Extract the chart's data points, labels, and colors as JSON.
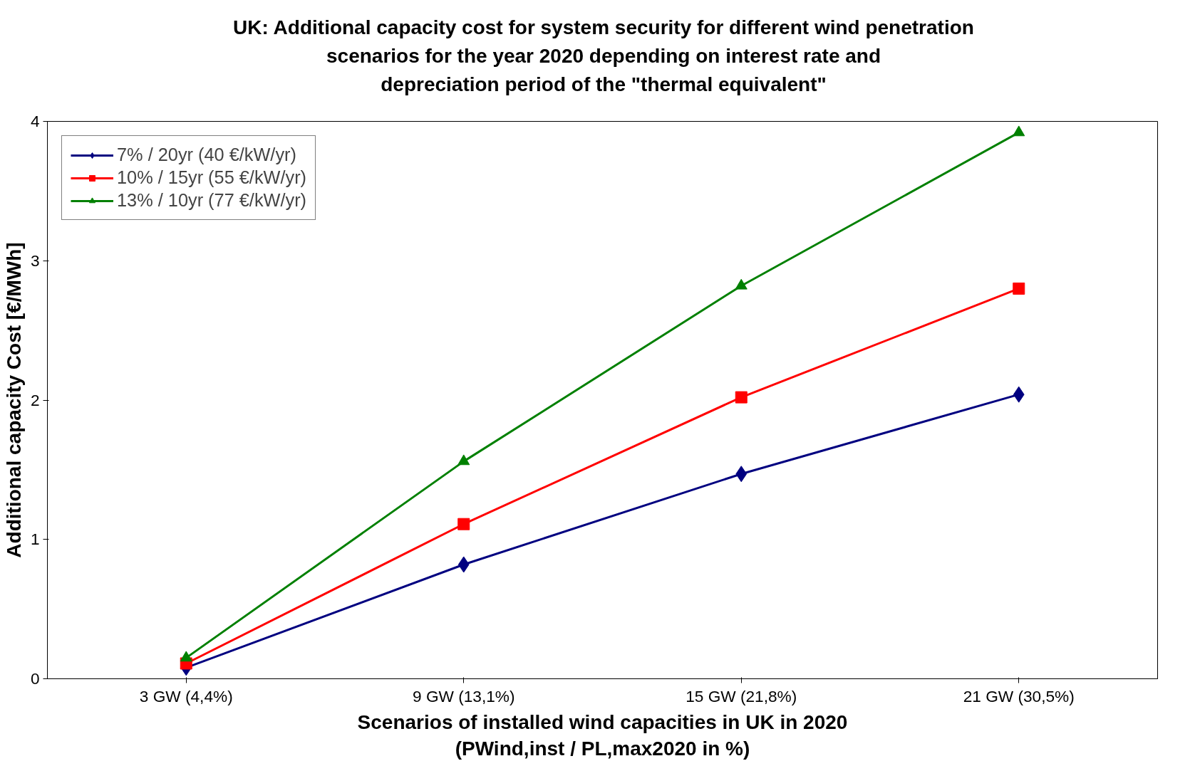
{
  "chart_data": {
    "type": "line",
    "title": "UK: Additional capacity cost for system security for different wind penetration\nscenarios for the year 2020 depending on interest rate and\ndepreciation period of the \"thermal equivalent\"",
    "xlabel": "Scenarios of installed wind capacities in UK in 2020\n(PWind,inst / PL,max2020 in %)",
    "ylabel": "Additional capacity Cost [€/MWh]",
    "categories": [
      "3 GW (4,4%)",
      "9 GW (13,1%)",
      "15 GW (21,8%)",
      "21 GW (30,5%)"
    ],
    "series": [
      {
        "name": "7% / 20yr (40 €/kW/yr)",
        "color": "#000080",
        "marker": "diamond",
        "values": [
          0.08,
          0.82,
          1.47,
          2.04
        ]
      },
      {
        "name": "10% / 15yr (55 €/kW/yr)",
        "color": "#ff0000",
        "marker": "square",
        "values": [
          0.11,
          1.11,
          2.02,
          2.8
        ]
      },
      {
        "name": "13% / 10yr (77 €/kW/yr)",
        "color": "#008000",
        "marker": "triangle",
        "values": [
          0.15,
          1.56,
          2.82,
          3.92
        ]
      }
    ],
    "ylim": [
      0,
      4
    ],
    "yticks": [
      0,
      1,
      2,
      3,
      4
    ],
    "grid": false,
    "legend": "top left",
    "line_style": "solid"
  }
}
